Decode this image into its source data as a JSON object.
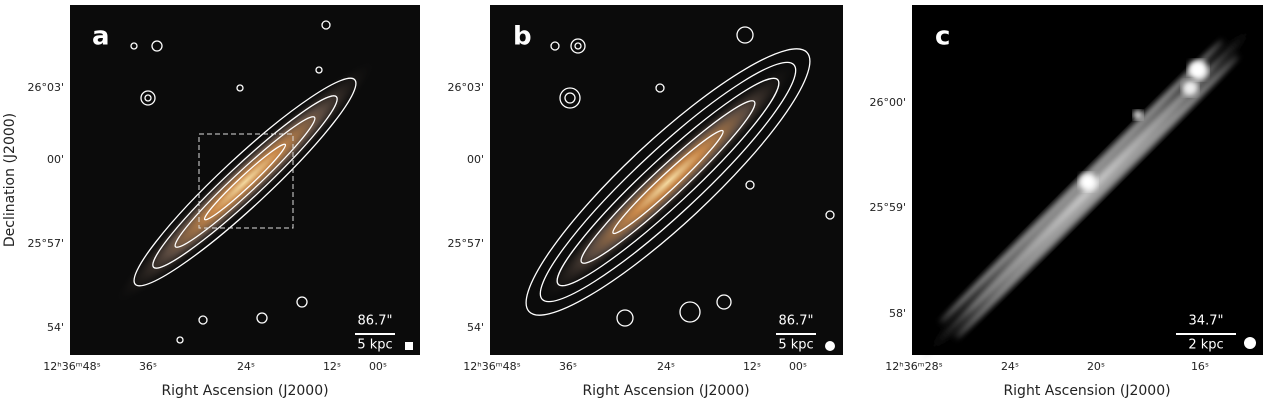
{
  "panels": [
    {
      "letter": "a",
      "yticks": [
        "26°03'",
        "00'",
        "25°57'",
        "54'"
      ],
      "xticks": [
        "12ʰ36ᵐ48ˢ",
        "36ˢ",
        "24ˢ",
        "12ˢ",
        "00ˢ"
      ],
      "xlabel": "Right Ascension (J2000)",
      "ylabel": "Declination (J2000)",
      "scale_angle": "86.7\"",
      "scale_length": "5 kpc"
    },
    {
      "letter": "b",
      "yticks": [
        "26°03'",
        "00'",
        "25°57'",
        "54'"
      ],
      "xticks": [
        "12ʰ36ᵐ48ˢ",
        "36ˢ",
        "24ˢ",
        "12ˢ",
        "00ˢ"
      ],
      "xlabel": "Right Ascension (J2000)",
      "scale_angle": "86.7\"",
      "scale_length": "5 kpc"
    },
    {
      "letter": "c",
      "yticks": [
        "26°00'",
        "25°59'",
        "58'"
      ],
      "xticks": [
        "12ʰ36ᵐ28ˢ",
        "24ˢ",
        "20ˢ",
        "16ˢ"
      ],
      "xlabel": "Right Ascension (J2000)",
      "scale_angle": "34.7\"",
      "scale_length": "2 kpc"
    }
  ]
}
